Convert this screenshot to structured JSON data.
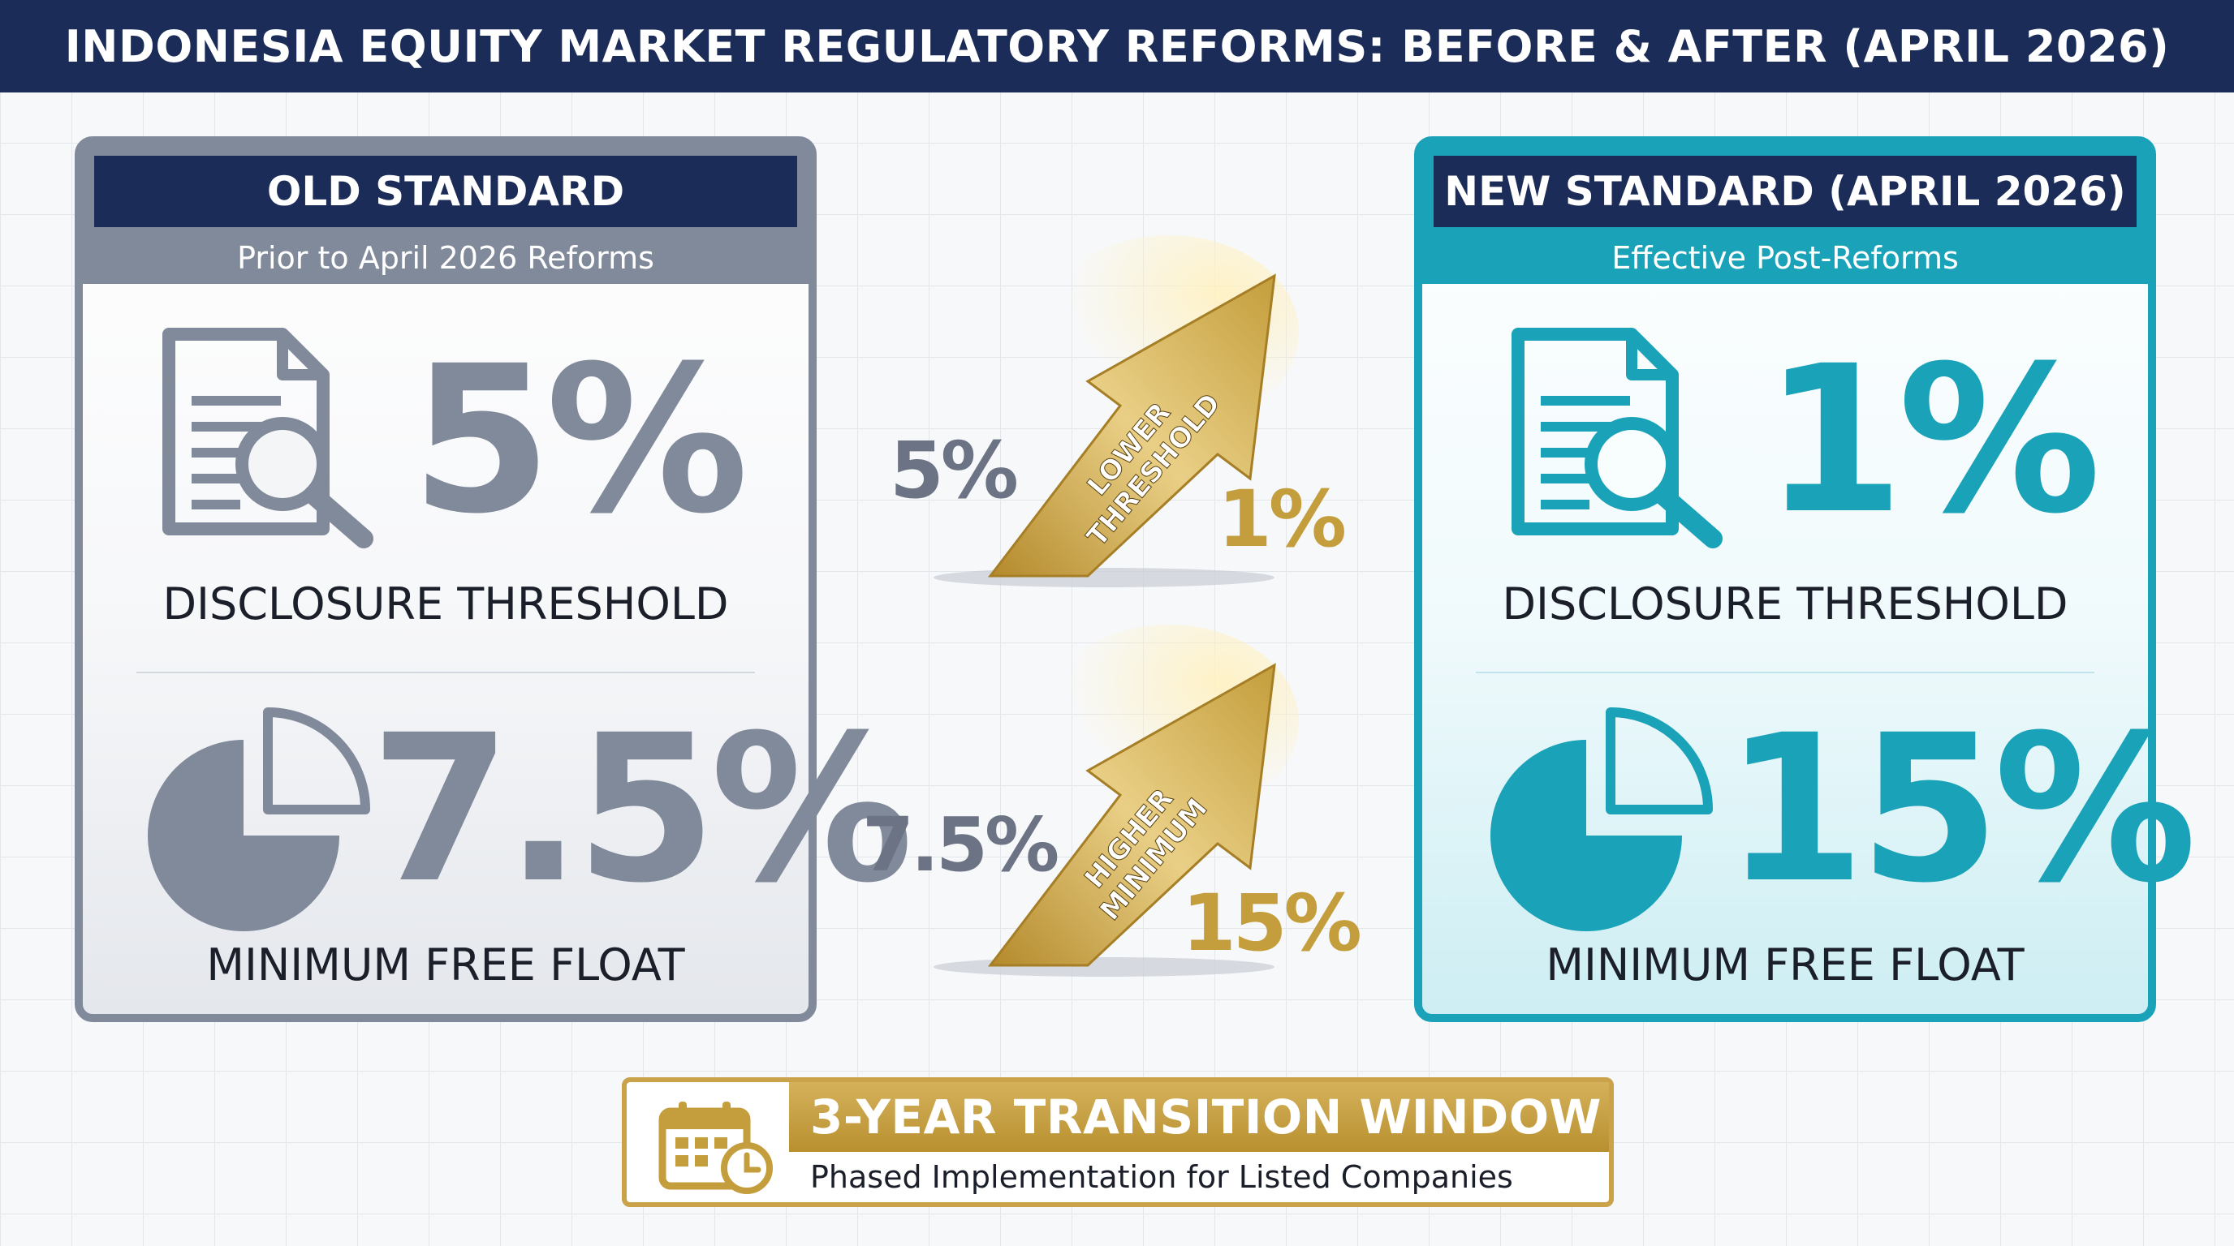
{
  "title": "INDONESIA EQUITY MARKET REGULATORY REFORMS: BEFORE & AFTER (APRIL 2026)",
  "old_panel": {
    "heading": "OLD STANDARD",
    "subheading": "Prior to April 2026 Reforms",
    "disclosure_value": "5%",
    "disclosure_label": "DISCLOSURE THRESHOLD",
    "float_value": "7.5%",
    "float_label": "MINIMUM FREE FLOAT"
  },
  "new_panel": {
    "heading": "NEW STANDARD (APRIL 2026)",
    "subheading": "Effective Post-Reforms",
    "disclosure_value": "1%",
    "disclosure_label": "DISCLOSURE THRESHOLD",
    "float_value": "15%",
    "float_label": "MINIMUM FREE FLOAT"
  },
  "transitions": [
    {
      "from": "5%",
      "to": "1%",
      "arrow_line1": "LOWER",
      "arrow_line2": "THRESHOLD"
    },
    {
      "from": "7.5%",
      "to": "15%",
      "arrow_line1": "HIGHER",
      "arrow_line2": "MINIMUM"
    }
  ],
  "banner": {
    "title": "3-YEAR TRANSITION WINDOW",
    "subtitle": "Phased Implementation for Listed Companies"
  },
  "colors": {
    "navy": "#1c2c58",
    "old_grey": "#818a9a",
    "new_teal": "#1aa3b8",
    "gold": "#c9a24a"
  },
  "icons": [
    "document-search-icon",
    "pie-chart-icon",
    "arrow-up-icon",
    "calendar-clock-icon"
  ]
}
